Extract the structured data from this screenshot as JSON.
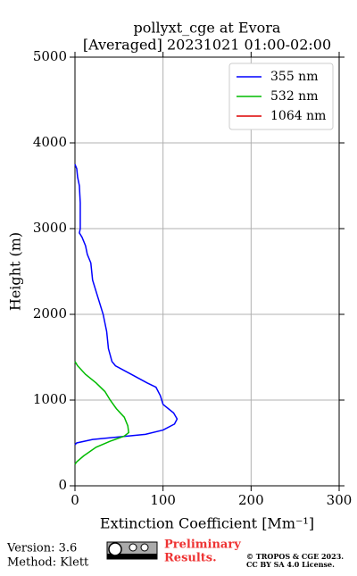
{
  "chart_data": {
    "type": "line",
    "title": [
      "pollyxt_cge at Evora",
      "[Averaged] 20231021 01:00-02:00"
    ],
    "xlabel": "Extinction Coefficient [Mm⁻¹]",
    "ylabel": "Height (m)",
    "xlim": [
      0,
      300
    ],
    "xticks": [
      0,
      100,
      200,
      300
    ],
    "ylim": [
      0,
      5000
    ],
    "yticks": [
      0,
      1000,
      2000,
      3000,
      4000,
      5000
    ],
    "grid": true,
    "legend": "upper right",
    "series": [
      {
        "name": "355 nm",
        "color": "#0000ff",
        "x": [
          0,
          2,
          3,
          5,
          6,
          6,
          5,
          8,
          12,
          14,
          18,
          20,
          26,
          32,
          36,
          38,
          42,
          46,
          64,
          82,
          92,
          97,
          100,
          112,
          116,
          113,
          100,
          80,
          50,
          20,
          2,
          0
        ],
        "values": [
          3750,
          3700,
          3600,
          3500,
          3300,
          3000,
          2950,
          2900,
          2800,
          2700,
          2600,
          2400,
          2200,
          2000,
          1800,
          1600,
          1450,
          1400,
          1300,
          1200,
          1150,
          1050,
          950,
          850,
          780,
          720,
          650,
          600,
          570,
          540,
          500,
          480
        ]
      },
      {
        "name": "532 nm",
        "color": "#00bb00",
        "x": [
          0,
          3,
          12,
          24,
          34,
          40,
          47,
          56,
          60,
          61,
          56,
          40,
          24,
          10,
          2,
          0
        ],
        "values": [
          1450,
          1400,
          1300,
          1200,
          1100,
          1000,
          900,
          800,
          700,
          620,
          580,
          520,
          450,
          350,
          280,
          250
        ]
      },
      {
        "name": "1064 nm",
        "color": "#dd0000",
        "x": [],
        "values": []
      }
    ]
  },
  "footer": {
    "version": "Version: 3.6",
    "method": "Method: Klett",
    "preliminary": [
      "Preliminary",
      "Results."
    ],
    "copyright": [
      "© TROPOS & CGE 2023.",
      "CC BY SA 4.0 License."
    ]
  }
}
